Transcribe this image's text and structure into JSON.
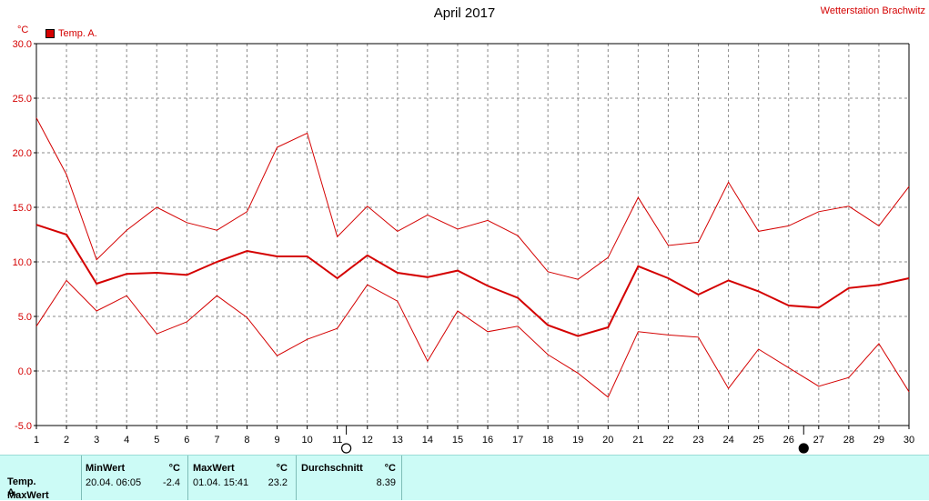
{
  "title": "April 2017",
  "station": "Wetterstation Brachwitz",
  "unit": "°C",
  "legend": {
    "label": "Temp. A.",
    "color": "#d40000"
  },
  "chart_data": {
    "type": "line",
    "x": [
      1,
      2,
      3,
      4,
      5,
      6,
      7,
      8,
      9,
      10,
      11,
      12,
      13,
      14,
      15,
      16,
      17,
      18,
      19,
      20,
      21,
      22,
      23,
      24,
      25,
      26,
      27,
      28,
      29,
      30
    ],
    "xlim": [
      1,
      30
    ],
    "ylim": [
      -5,
      30
    ],
    "yticks": [
      "-5.0",
      "0.0",
      "5.0",
      "10.0",
      "15.0",
      "20.0",
      "25.0",
      "30.0"
    ],
    "xticks": [
      "1",
      "2",
      "3",
      "4",
      "5",
      "6",
      "7",
      "8",
      "9",
      "10",
      "11",
      "12",
      "13",
      "14",
      "15",
      "16",
      "17",
      "18",
      "19",
      "20",
      "21",
      "22",
      "23",
      "24",
      "25",
      "26",
      "27",
      "28",
      "29",
      "30"
    ],
    "grid": true,
    "series": [
      {
        "name": "Temp. A.",
        "role": "max",
        "width": 1,
        "values": [
          23.2,
          18.0,
          10.2,
          12.9,
          15.0,
          13.6,
          12.9,
          14.6,
          20.5,
          21.8,
          12.3,
          15.1,
          12.8,
          14.3,
          13.0,
          13.8,
          12.4,
          9.1,
          8.4,
          10.4,
          15.9,
          11.5,
          11.8,
          17.3,
          12.8,
          13.3,
          14.6,
          15.1,
          13.3,
          16.9
        ]
      },
      {
        "name": "Temp. A.",
        "role": "mean",
        "width": 2,
        "values": [
          13.4,
          12.5,
          8.0,
          8.9,
          9.0,
          8.8,
          10.0,
          11.0,
          10.5,
          10.5,
          8.5,
          10.6,
          9.0,
          8.6,
          9.2,
          7.8,
          6.7,
          4.2,
          3.2,
          4.0,
          9.6,
          8.5,
          7.0,
          8.3,
          7.3,
          6.0,
          5.8,
          7.6,
          7.9,
          8.5
        ]
      },
      {
        "name": "Temp. A.",
        "role": "min",
        "width": 1,
        "values": [
          4.1,
          8.3,
          5.5,
          6.9,
          3.4,
          4.5,
          6.9,
          4.9,
          1.4,
          2.9,
          3.9,
          7.9,
          6.4,
          0.9,
          5.5,
          3.6,
          4.1,
          1.5,
          -0.2,
          -2.4,
          3.6,
          3.3,
          3.1,
          -1.6,
          2.0,
          0.3,
          -1.4,
          -0.6,
          2.5,
          -1.9
        ]
      }
    ],
    "color": "#d40000",
    "moon_markers": [
      {
        "x": 11.3,
        "phase": "full-moon"
      },
      {
        "x": 26.5,
        "phase": "new-moon"
      }
    ]
  },
  "stats": {
    "row_label_1": "Temp. A.",
    "row_label_2": "MaxWert",
    "min_header": "MinWert",
    "min_unit": "°C",
    "min_date": "20.04.  06:05",
    "min_value": "-2.4",
    "max_header": "MaxWert",
    "max_unit": "°C",
    "max_date": "01.04.  15:41",
    "max_value": "23.2",
    "avg_header": "Durchschnitt",
    "avg_unit": "°C",
    "avg_value": "8.39"
  }
}
